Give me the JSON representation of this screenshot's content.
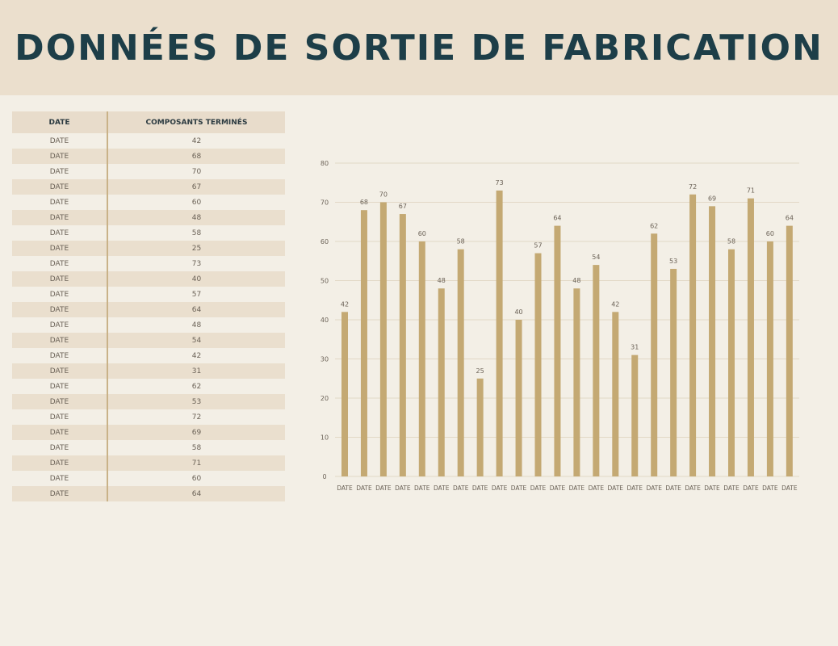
{
  "header": {
    "title": "DONNÉES DE SORTIE DE FABRICATION"
  },
  "table": {
    "columns": [
      "DATE",
      "COMPOSANTS TERMINÉS"
    ]
  },
  "chart_data": {
    "type": "bar",
    "categories": [
      "DATE",
      "DATE",
      "DATE",
      "DATE",
      "DATE",
      "DATE",
      "DATE",
      "DATE",
      "DATE",
      "DATE",
      "DATE",
      "DATE",
      "DATE",
      "DATE",
      "DATE",
      "DATE",
      "DATE",
      "DATE",
      "DATE",
      "DATE",
      "DATE",
      "DATE",
      "DATE",
      "DATE"
    ],
    "values": [
      42,
      68,
      70,
      67,
      60,
      48,
      58,
      25,
      73,
      40,
      57,
      64,
      48,
      54,
      42,
      31,
      62,
      53,
      72,
      69,
      58,
      71,
      60,
      64
    ],
    "ylim": [
      0,
      80
    ],
    "yticks": [
      0,
      10,
      20,
      30,
      40,
      50,
      60,
      70,
      80
    ],
    "grid": true,
    "data_labels": true,
    "bar_color": "#c4a973"
  }
}
